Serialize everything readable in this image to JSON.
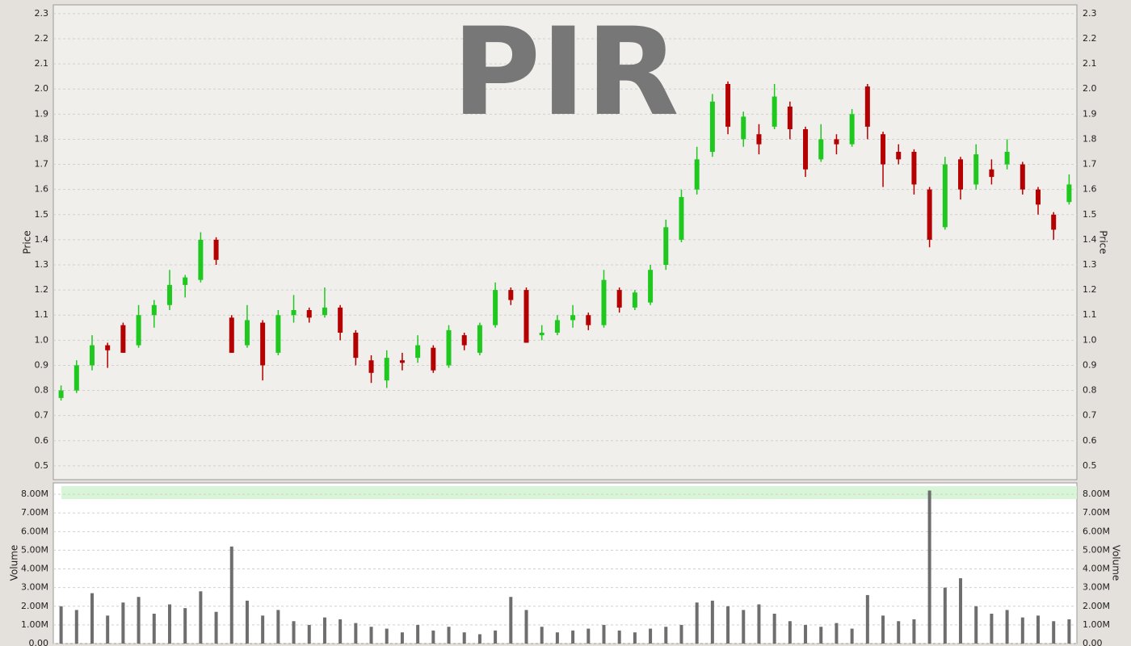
{
  "chart_data": [
    {
      "type": "candlestick",
      "title": "PIR",
      "y_label": "Price",
      "ylim": [
        0.445,
        2.335
      ],
      "yticks": [
        0.5,
        0.6,
        0.7,
        0.8,
        0.9,
        {
          "value": 1.0,
          "label": "1.0"
        },
        1.1,
        1.2,
        1.3,
        1.4,
        1.5,
        1.6,
        1.7,
        1.8,
        1.9,
        {
          "value": 2.0,
          "label": "2.0"
        },
        2.1,
        2.2,
        2.3
      ],
      "grid": true,
      "up_color": "#1fc81f",
      "down_color": "#b40000",
      "open": [
        0.77,
        0.8,
        0.9,
        0.98,
        1.06,
        0.98,
        1.1,
        1.14,
        1.22,
        1.24,
        1.4,
        1.09,
        0.98,
        1.07,
        0.95,
        1.1,
        1.12,
        1.1,
        1.13,
        1.03,
        0.92,
        0.84,
        0.92,
        0.93,
        0.97,
        0.9,
        1.02,
        0.95,
        1.06,
        1.2,
        1.2,
        1.02,
        1.03,
        1.08,
        1.1,
        1.06,
        1.2,
        1.13,
        1.15,
        1.3,
        1.4,
        1.6,
        1.75,
        2.02,
        1.8,
        1.82,
        1.85,
        1.93,
        1.84,
        1.72,
        1.8,
        1.78,
        2.01,
        1.82,
        1.75,
        1.75,
        1.6,
        1.45,
        1.72,
        1.62,
        1.68,
        1.7,
        1.7,
        1.6,
        1.5,
        1.55
      ],
      "high": [
        0.82,
        0.92,
        1.02,
        0.99,
        1.07,
        1.14,
        1.16,
        1.28,
        1.26,
        1.43,
        1.41,
        1.1,
        1.14,
        1.08,
        1.12,
        1.18,
        1.13,
        1.21,
        1.14,
        1.04,
        0.94,
        0.96,
        0.95,
        1.02,
        0.98,
        1.06,
        1.03,
        1.07,
        1.23,
        1.21,
        1.21,
        1.06,
        1.1,
        1.14,
        1.11,
        1.28,
        1.21,
        1.2,
        1.3,
        1.48,
        1.6,
        1.77,
        1.98,
        2.03,
        1.91,
        1.86,
        2.02,
        1.95,
        1.85,
        1.86,
        1.82,
        1.92,
        2.02,
        1.83,
        1.78,
        1.76,
        1.61,
        1.73,
        1.73,
        1.78,
        1.72,
        1.8,
        1.71,
        1.61,
        1.51,
        1.66
      ],
      "low": [
        0.76,
        0.79,
        0.88,
        0.89,
        0.95,
        0.97,
        1.05,
        1.12,
        1.17,
        1.23,
        1.3,
        0.95,
        0.97,
        0.84,
        0.94,
        1.07,
        1.07,
        1.09,
        1.0,
        0.9,
        0.83,
        0.81,
        0.88,
        0.91,
        0.87,
        0.89,
        0.96,
        0.94,
        1.05,
        1.14,
        0.99,
        1.0,
        1.02,
        1.05,
        1.04,
        1.05,
        1.11,
        1.12,
        1.14,
        1.28,
        1.39,
        1.58,
        1.73,
        1.82,
        1.77,
        1.74,
        1.84,
        1.8,
        1.65,
        1.71,
        1.74,
        1.77,
        1.8,
        1.61,
        1.7,
        1.58,
        1.37,
        1.44,
        1.56,
        1.6,
        1.62,
        1.68,
        1.58,
        1.5,
        1.4,
        1.54
      ],
      "close": [
        0.8,
        0.9,
        0.98,
        0.96,
        0.95,
        1.1,
        1.14,
        1.22,
        1.25,
        1.4,
        1.32,
        0.95,
        1.08,
        0.9,
        1.1,
        1.12,
        1.09,
        1.13,
        1.03,
        0.93,
        0.87,
        0.93,
        0.91,
        0.98,
        0.88,
        1.04,
        0.98,
        1.06,
        1.2,
        1.16,
        0.99,
        1.03,
        1.08,
        1.1,
        1.06,
        1.24,
        1.13,
        1.19,
        1.28,
        1.45,
        1.57,
        1.72,
        1.95,
        1.85,
        1.89,
        1.78,
        1.97,
        1.84,
        1.68,
        1.8,
        1.78,
        1.9,
        1.85,
        1.7,
        1.72,
        1.62,
        1.4,
        1.7,
        1.6,
        1.74,
        1.65,
        1.75,
        1.6,
        1.54,
        1.44,
        1.62
      ]
    },
    {
      "type": "volume",
      "y_label": "Volume",
      "color": "#6e6e6e",
      "ylim": [
        0,
        8610000
      ],
      "yticks": [
        {
          "value": 0,
          "label": "0.00"
        },
        {
          "value": 1000000,
          "label": "1.00M"
        },
        {
          "value": 2000000,
          "label": "2.00M"
        },
        {
          "value": 3000000,
          "label": "3.00M"
        },
        {
          "value": 4000000,
          "label": "4.00M"
        },
        {
          "value": 5000000,
          "label": "5.00M"
        },
        {
          "value": 6000000,
          "label": "6.00M"
        },
        {
          "value": 7000000,
          "label": "7.00M"
        },
        {
          "value": 8000000,
          "label": "8.00M"
        }
      ],
      "grid": true,
      "values": [
        2000000,
        1800000,
        2700000,
        1500000,
        2200000,
        2500000,
        1600000,
        2100000,
        1900000,
        2800000,
        1700000,
        5200000,
        2300000,
        1500000,
        1800000,
        1200000,
        1000000,
        1400000,
        1300000,
        1100000,
        900000,
        800000,
        600000,
        1000000,
        700000,
        900000,
        600000,
        500000,
        700000,
        2500000,
        1800000,
        900000,
        600000,
        700000,
        800000,
        1000000,
        700000,
        600000,
        800000,
        900000,
        1000000,
        2200000,
        2300000,
        2000000,
        1800000,
        2100000,
        1600000,
        1200000,
        1000000,
        900000,
        1100000,
        800000,
        2600000,
        1500000,
        1200000,
        1300000,
        8200000,
        3000000,
        3500000,
        2000000,
        1600000,
        1800000,
        1400000,
        1500000,
        1200000,
        1300000
      ]
    }
  ]
}
